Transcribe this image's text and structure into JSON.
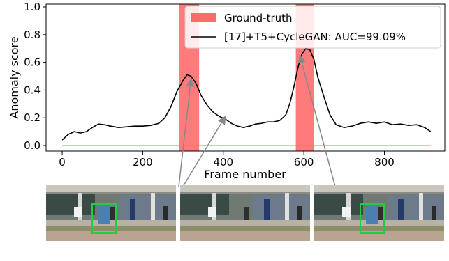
{
  "chart_data": {
    "type": "line",
    "title": "",
    "xlabel": "Frame number",
    "ylabel": "Anomaly score",
    "xlim": [
      -40,
      950
    ],
    "ylim": [
      -0.04,
      1.02
    ],
    "xticks": [
      0,
      200,
      400,
      600,
      800
    ],
    "yticks": [
      0.0,
      0.2,
      0.4,
      0.6,
      0.8,
      1.0
    ],
    "xtick_labels": [
      "0",
      "200",
      "400",
      "600",
      "800"
    ],
    "ytick_labels": [
      "0.0",
      "0.2",
      "0.4",
      "0.6",
      "0.8",
      "1.0"
    ],
    "grid": false,
    "legend_position": "top-right",
    "ground_truth": {
      "name": "Ground-truth",
      "color": "#ff6b6b",
      "intervals": [
        [
          290,
          340
        ],
        [
          580,
          625
        ]
      ]
    },
    "series": [
      {
        "name": "[17]+T5+CycleGAN: AUC=99.09%",
        "color": "#000000",
        "x": [
          0,
          15,
          30,
          45,
          60,
          75,
          90,
          105,
          120,
          140,
          160,
          180,
          200,
          220,
          240,
          255,
          270,
          285,
          300,
          310,
          320,
          332,
          345,
          360,
          375,
          390,
          405,
          420,
          435,
          450,
          465,
          480,
          495,
          510,
          525,
          540,
          555,
          565,
          575,
          585,
          595,
          605,
          615,
          625,
          635,
          650,
          665,
          680,
          700,
          720,
          740,
          760,
          780,
          800,
          820,
          840,
          860,
          880,
          900,
          915
        ],
        "y": [
          0.04,
          0.08,
          0.1,
          0.09,
          0.1,
          0.13,
          0.155,
          0.15,
          0.14,
          0.13,
          0.135,
          0.14,
          0.14,
          0.145,
          0.16,
          0.2,
          0.28,
          0.39,
          0.47,
          0.51,
          0.5,
          0.45,
          0.36,
          0.29,
          0.24,
          0.21,
          0.19,
          0.16,
          0.14,
          0.13,
          0.14,
          0.155,
          0.16,
          0.17,
          0.17,
          0.18,
          0.22,
          0.3,
          0.42,
          0.56,
          0.66,
          0.7,
          0.69,
          0.62,
          0.49,
          0.35,
          0.22,
          0.15,
          0.13,
          0.14,
          0.16,
          0.17,
          0.16,
          0.17,
          0.15,
          0.155,
          0.145,
          0.15,
          0.13,
          0.1
        ]
      }
    ]
  },
  "annotations": [
    {
      "from_thumb": 0,
      "to_x": 320,
      "to_y": 0.48
    },
    {
      "from_thumb": 1,
      "to_x": 405,
      "to_y": 0.21
    },
    {
      "from_thumb": 2,
      "to_x": 590,
      "to_y": 0.65
    }
  ],
  "thumbnails": [
    {
      "name": "frame-thumbnail-1",
      "detection_box": true
    },
    {
      "name": "frame-thumbnail-2",
      "detection_box": false
    },
    {
      "name": "frame-thumbnail-3",
      "detection_box": true
    }
  ],
  "colors": {
    "ground_truth": "#ff6b6b",
    "detection_box": "#22cc44",
    "arrow": "#888888"
  }
}
